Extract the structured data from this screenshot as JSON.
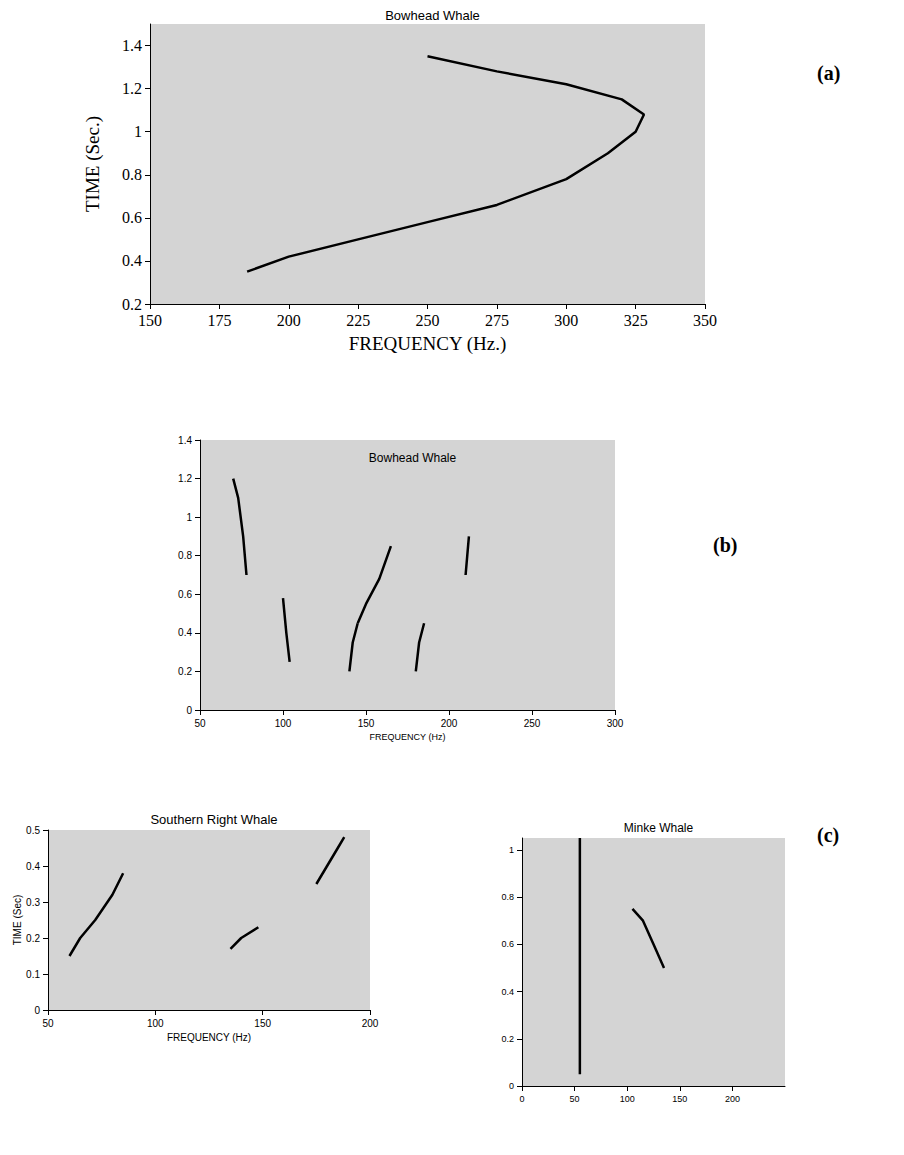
{
  "chart_data": [
    {
      "type": "line",
      "title": "Bowhead Whale",
      "annotation": "(a)",
      "x_label": "FREQUENCY (Hz.)",
      "y_label": "TIME (Sec.)",
      "xlim": [
        150,
        350
      ],
      "xticks": [
        150,
        175,
        200,
        225,
        250,
        275,
        300,
        325,
        350
      ],
      "ylim": [
        0.2,
        1.5
      ],
      "yticks": [
        0.2,
        0.4,
        0.6,
        0.8,
        1.0,
        1.2,
        1.4
      ],
      "series": [
        {
          "color": "#000000",
          "x": [
            185,
            200,
            225,
            250,
            275,
            300,
            315,
            325,
            328,
            320,
            300,
            275,
            250
          ],
          "values": [
            0.35,
            0.42,
            0.5,
            0.58,
            0.66,
            0.78,
            0.9,
            1.0,
            1.08,
            1.15,
            1.22,
            1.28,
            1.35
          ]
        }
      ]
    },
    {
      "type": "line",
      "title": "Bowhead Whale",
      "annotation": "(b)",
      "x_label": "FREQUENCY (Hz)",
      "xlim": [
        50,
        300
      ],
      "xticks": [
        50,
        100,
        150,
        200,
        250,
        300
      ],
      "ylim": [
        0,
        1.4
      ],
      "yticks": [
        0,
        0.2,
        0.4,
        0.6,
        0.8,
        1,
        1.2,
        1.4
      ],
      "series": [
        {
          "color": "#000000",
          "x": [
            104,
            102,
            100
          ],
          "values": [
            0.25,
            0.4,
            0.58
          ]
        },
        {
          "color": "#000000",
          "x": [
            140,
            142,
            145
          ],
          "values": [
            0.2,
            0.35,
            0.45
          ]
        },
        {
          "color": "#000000",
          "x": [
            145,
            150,
            158,
            165
          ],
          "values": [
            0.45,
            0.55,
            0.68,
            0.85
          ]
        },
        {
          "color": "#000000",
          "x": [
            180,
            182,
            185
          ],
          "values": [
            0.2,
            0.35,
            0.45
          ]
        },
        {
          "color": "#000000",
          "x": [
            78,
            76,
            73,
            70
          ],
          "values": [
            0.7,
            0.9,
            1.1,
            1.2
          ]
        },
        {
          "color": "#000000",
          "x": [
            210,
            211,
            212
          ],
          "values": [
            0.7,
            0.8,
            0.9
          ]
        }
      ]
    },
    {
      "type": "line",
      "title": "Southern Right Whale",
      "x_label": "FREQUENCY (Hz)",
      "y_label": "TIME (Sec)",
      "xlim": [
        50,
        200
      ],
      "xticks": [
        50,
        100,
        150,
        200
      ],
      "ylim": [
        0,
        0.5
      ],
      "yticks": [
        0,
        0.1,
        0.2,
        0.3,
        0.4,
        0.5
      ],
      "series": [
        {
          "color": "#000000",
          "x": [
            60,
            65,
            72,
            80,
            85
          ],
          "values": [
            0.15,
            0.2,
            0.25,
            0.32,
            0.38
          ]
        },
        {
          "color": "#000000",
          "x": [
            135,
            140,
            148
          ],
          "values": [
            0.17,
            0.2,
            0.23
          ]
        },
        {
          "color": "#000000",
          "x": [
            175,
            180,
            185,
            188
          ],
          "values": [
            0.35,
            0.4,
            0.45,
            0.48
          ]
        }
      ]
    },
    {
      "type": "line",
      "title": "Minke Whale",
      "annotation": "(c)",
      "xlim": [
        0,
        250
      ],
      "xticks": [
        0,
        50,
        100,
        150,
        200
      ],
      "ylim": [
        0,
        1.05
      ],
      "yticks": [
        0,
        0.2,
        0.4,
        0.6,
        0.8,
        1
      ],
      "series": [
        {
          "color": "#000000",
          "x": [
            55,
            55
          ],
          "values": [
            0.05,
            1.05
          ]
        },
        {
          "color": "#000000",
          "x": [
            105,
            115,
            125,
            135
          ],
          "values": [
            0.75,
            0.7,
            0.6,
            0.5
          ]
        }
      ]
    }
  ]
}
